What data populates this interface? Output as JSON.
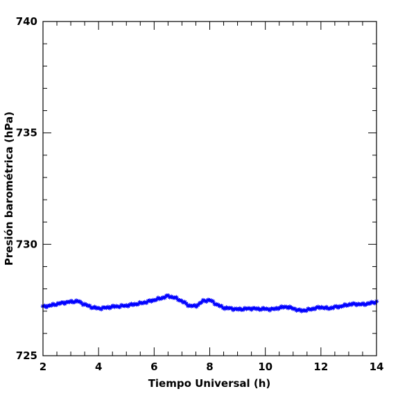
{
  "chart_data": {
    "type": "scatter",
    "title": "",
    "xlabel": "Tiempo Universal (h)",
    "ylabel": "Presión barométrica (hPa)",
    "xlim": [
      2,
      14
    ],
    "ylim": [
      725,
      740
    ],
    "xticks": [
      2,
      4,
      6,
      8,
      10,
      12,
      14
    ],
    "xtick_labels": [
      "2",
      "4",
      "6",
      "8",
      "10",
      "12",
      "14"
    ],
    "yticks": [
      725,
      730,
      735,
      740
    ],
    "ytick_labels": [
      "725",
      "730",
      "735",
      "740"
    ],
    "x_minor_step": 0.5,
    "y_minor_step": 1,
    "grid": false,
    "marker": "star",
    "series": [
      {
        "color": "#0000ff",
        "x": [
          2.0,
          2.25,
          2.5,
          2.75,
          3.0,
          3.25,
          3.5,
          3.75,
          4.0,
          4.25,
          4.5,
          4.75,
          5.0,
          5.25,
          5.5,
          5.75,
          6.0,
          6.25,
          6.5,
          6.75,
          7.0,
          7.25,
          7.5,
          7.75,
          8.0,
          8.25,
          8.5,
          8.75,
          9.0,
          9.25,
          9.5,
          9.75,
          10.0,
          10.25,
          10.5,
          10.75,
          11.0,
          11.25,
          11.5,
          11.75,
          12.0,
          12.25,
          12.5,
          12.75,
          13.0,
          13.25,
          13.5,
          13.75,
          14.0
        ],
        "y": [
          727.2,
          727.25,
          727.32,
          727.38,
          727.42,
          727.45,
          727.3,
          727.18,
          727.12,
          727.15,
          727.2,
          727.22,
          727.25,
          727.3,
          727.35,
          727.42,
          727.5,
          727.58,
          727.68,
          727.6,
          727.45,
          727.25,
          727.22,
          727.45,
          727.5,
          727.3,
          727.15,
          727.12,
          727.08,
          727.1,
          727.12,
          727.1,
          727.1,
          727.08,
          727.15,
          727.2,
          727.12,
          727.02,
          727.05,
          727.12,
          727.18,
          727.12,
          727.18,
          727.22,
          727.3,
          727.32,
          727.3,
          727.35,
          727.42
        ]
      }
    ]
  }
}
